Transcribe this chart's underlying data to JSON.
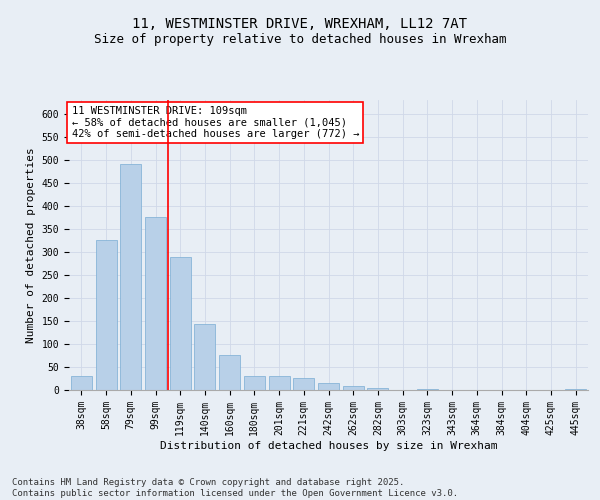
{
  "title_line1": "11, WESTMINSTER DRIVE, WREXHAM, LL12 7AT",
  "title_line2": "Size of property relative to detached houses in Wrexham",
  "xlabel": "Distribution of detached houses by size in Wrexham",
  "ylabel": "Number of detached properties",
  "categories": [
    "38sqm",
    "58sqm",
    "79sqm",
    "99sqm",
    "119sqm",
    "140sqm",
    "160sqm",
    "180sqm",
    "201sqm",
    "221sqm",
    "242sqm",
    "262sqm",
    "282sqm",
    "303sqm",
    "323sqm",
    "343sqm",
    "364sqm",
    "384sqm",
    "404sqm",
    "425sqm",
    "445sqm"
  ],
  "values": [
    30,
    325,
    490,
    375,
    290,
    143,
    75,
    30,
    30,
    25,
    15,
    8,
    5,
    1,
    3,
    1,
    0,
    0,
    1,
    0,
    2
  ],
  "bar_color": "#b8d0e8",
  "bar_edge_color": "#7aadd4",
  "grid_color": "#d0d8e8",
  "background_color": "#e8eef5",
  "plot_bg_color": "#e8eef5",
  "annotation_text": "11 WESTMINSTER DRIVE: 109sqm\n← 58% of detached houses are smaller (1,045)\n42% of semi-detached houses are larger (772) →",
  "vline_x": 3.5,
  "vline_color": "red",
  "ylim": [
    0,
    630
  ],
  "yticks": [
    0,
    50,
    100,
    150,
    200,
    250,
    300,
    350,
    400,
    450,
    500,
    550,
    600
  ],
  "footer_text": "Contains HM Land Registry data © Crown copyright and database right 2025.\nContains public sector information licensed under the Open Government Licence v3.0.",
  "title_fontsize": 10,
  "subtitle_fontsize": 9,
  "axis_label_fontsize": 8,
  "tick_fontsize": 7,
  "annotation_fontsize": 7.5,
  "footer_fontsize": 6.5
}
